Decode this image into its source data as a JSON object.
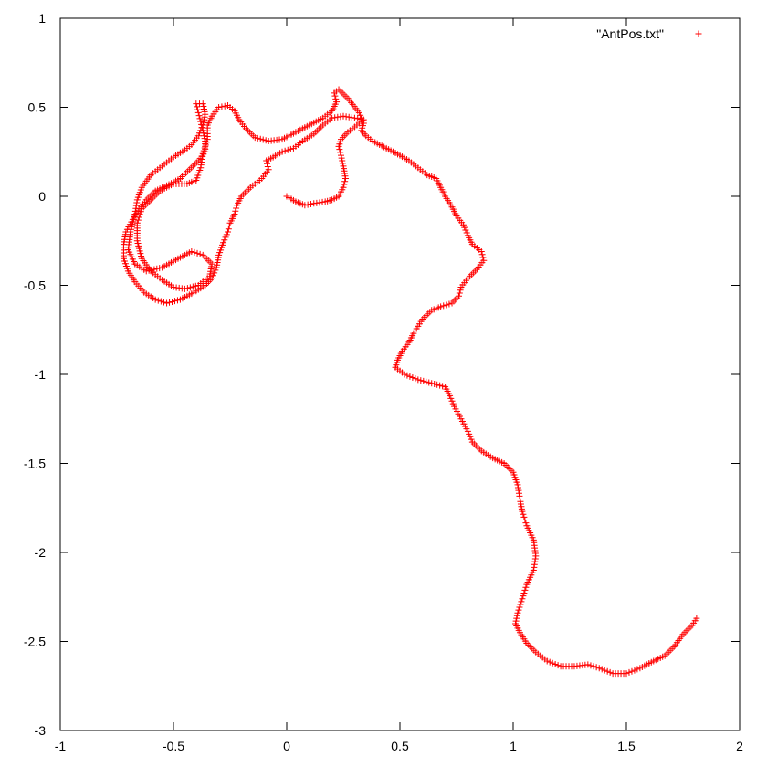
{
  "chart_data": {
    "type": "scatter",
    "xlim": [
      -1,
      2
    ],
    "ylim": [
      -3,
      1
    ],
    "x_ticks": [
      "-1",
      "-0.5",
      "0",
      "0.5",
      "1",
      "1.5",
      "2"
    ],
    "y_ticks": [
      "1",
      "0.5",
      "0",
      "-0.5",
      "-1",
      "-1.5",
      "-2",
      "-2.5",
      "-3"
    ],
    "grid": false,
    "legend": {
      "placement": "top-right",
      "entries": [
        "\"AntPos.txt\""
      ]
    },
    "series": [
      {
        "name": "\"AntPos.txt\"",
        "color": "#ff0000",
        "marker": "plus",
        "points": [
          [
            0.0,
            0.0
          ],
          [
            0.04,
            -0.03
          ],
          [
            0.08,
            -0.05
          ],
          [
            0.12,
            -0.04
          ],
          [
            0.17,
            -0.03
          ],
          [
            0.2,
            -0.02
          ],
          [
            0.23,
            0.0
          ],
          [
            0.25,
            0.05
          ],
          [
            0.26,
            0.1
          ],
          [
            0.25,
            0.17
          ],
          [
            0.24,
            0.23
          ],
          [
            0.23,
            0.28
          ],
          [
            0.24,
            0.32
          ],
          [
            0.27,
            0.36
          ],
          [
            0.31,
            0.4
          ],
          [
            0.34,
            0.43
          ],
          [
            0.3,
            0.44
          ],
          [
            0.25,
            0.45
          ],
          [
            0.2,
            0.44
          ],
          [
            0.16,
            0.4
          ],
          [
            0.12,
            0.35
          ],
          [
            0.07,
            0.31
          ],
          [
            0.03,
            0.27
          ],
          [
            -0.02,
            0.25
          ],
          [
            -0.06,
            0.22
          ],
          [
            -0.09,
            0.2
          ],
          [
            -0.08,
            0.15
          ],
          [
            -0.11,
            0.1
          ],
          [
            -0.16,
            0.05
          ],
          [
            -0.2,
            0.0
          ],
          [
            -0.22,
            -0.05
          ],
          [
            -0.23,
            -0.1
          ],
          [
            -0.25,
            -0.15
          ],
          [
            -0.26,
            -0.2
          ],
          [
            -0.28,
            -0.26
          ],
          [
            -0.3,
            -0.33
          ],
          [
            -0.31,
            -0.4
          ],
          [
            -0.33,
            -0.46
          ],
          [
            -0.36,
            -0.5
          ],
          [
            -0.41,
            -0.54
          ],
          [
            -0.47,
            -0.58
          ],
          [
            -0.53,
            -0.6
          ],
          [
            -0.58,
            -0.58
          ],
          [
            -0.63,
            -0.54
          ],
          [
            -0.67,
            -0.48
          ],
          [
            -0.7,
            -0.42
          ],
          [
            -0.72,
            -0.35
          ],
          [
            -0.72,
            -0.27
          ],
          [
            -0.71,
            -0.2
          ],
          [
            -0.68,
            -0.13
          ],
          [
            -0.65,
            -0.07
          ],
          [
            -0.62,
            -0.02
          ],
          [
            -0.58,
            0.03
          ],
          [
            -0.53,
            0.06
          ],
          [
            -0.47,
            0.1
          ],
          [
            -0.43,
            0.15
          ],
          [
            -0.39,
            0.2
          ],
          [
            -0.36,
            0.25
          ],
          [
            -0.36,
            0.31
          ],
          [
            -0.37,
            0.37
          ],
          [
            -0.38,
            0.42
          ],
          [
            -0.39,
            0.47
          ],
          [
            -0.4,
            0.52
          ],
          [
            -0.37,
            0.52
          ],
          [
            -0.36,
            0.46
          ],
          [
            -0.37,
            0.4
          ],
          [
            -0.39,
            0.34
          ],
          [
            -0.42,
            0.29
          ],
          [
            -0.45,
            0.26
          ],
          [
            -0.5,
            0.22
          ],
          [
            -0.55,
            0.17
          ],
          [
            -0.6,
            0.12
          ],
          [
            -0.64,
            0.05
          ],
          [
            -0.66,
            -0.02
          ],
          [
            -0.67,
            -0.1
          ],
          [
            -0.69,
            -0.2
          ],
          [
            -0.7,
            -0.3
          ],
          [
            -0.67,
            -0.38
          ],
          [
            -0.62,
            -0.42
          ],
          [
            -0.55,
            -0.4
          ],
          [
            -0.48,
            -0.35
          ],
          [
            -0.42,
            -0.31
          ],
          [
            -0.37,
            -0.33
          ],
          [
            -0.33,
            -0.38
          ],
          [
            -0.34,
            -0.45
          ],
          [
            -0.39,
            -0.5
          ],
          [
            -0.45,
            -0.52
          ],
          [
            -0.5,
            -0.51
          ],
          [
            -0.55,
            -0.47
          ],
          [
            -0.6,
            -0.42
          ],
          [
            -0.64,
            -0.35
          ],
          [
            -0.66,
            -0.25
          ],
          [
            -0.66,
            -0.15
          ],
          [
            -0.64,
            -0.07
          ],
          [
            -0.6,
            -0.02
          ],
          [
            -0.56,
            0.03
          ],
          [
            -0.5,
            0.07
          ],
          [
            -0.44,
            0.07
          ],
          [
            -0.4,
            0.09
          ],
          [
            -0.38,
            0.16
          ],
          [
            -0.37,
            0.24
          ],
          [
            -0.35,
            0.32
          ],
          [
            -0.35,
            0.4
          ],
          [
            -0.33,
            0.45
          ],
          [
            -0.3,
            0.5
          ],
          [
            -0.26,
            0.51
          ],
          [
            -0.23,
            0.48
          ],
          [
            -0.21,
            0.43
          ],
          [
            -0.18,
            0.38
          ],
          [
            -0.14,
            0.33
          ],
          [
            -0.08,
            0.31
          ],
          [
            -0.02,
            0.32
          ],
          [
            0.04,
            0.36
          ],
          [
            0.1,
            0.4
          ],
          [
            0.16,
            0.44
          ],
          [
            0.2,
            0.48
          ],
          [
            0.22,
            0.53
          ],
          [
            0.21,
            0.58
          ],
          [
            0.23,
            0.6
          ],
          [
            0.27,
            0.55
          ],
          [
            0.32,
            0.47
          ],
          [
            0.34,
            0.41
          ],
          [
            0.33,
            0.37
          ],
          [
            0.35,
            0.34
          ],
          [
            0.38,
            0.31
          ],
          [
            0.44,
            0.27
          ],
          [
            0.5,
            0.23
          ],
          [
            0.54,
            0.2
          ],
          [
            0.58,
            0.16
          ],
          [
            0.62,
            0.12
          ],
          [
            0.66,
            0.1
          ],
          [
            0.68,
            0.05
          ],
          [
            0.7,
            0.0
          ],
          [
            0.73,
            -0.06
          ],
          [
            0.75,
            -0.11
          ],
          [
            0.78,
            -0.16
          ],
          [
            0.8,
            -0.22
          ],
          [
            0.82,
            -0.27
          ],
          [
            0.86,
            -0.31
          ],
          [
            0.87,
            -0.36
          ],
          [
            0.84,
            -0.41
          ],
          [
            0.8,
            -0.46
          ],
          [
            0.77,
            -0.51
          ],
          [
            0.76,
            -0.56
          ],
          [
            0.73,
            -0.6
          ],
          [
            0.68,
            -0.62
          ],
          [
            0.64,
            -0.64
          ],
          [
            0.6,
            -0.69
          ],
          [
            0.58,
            -0.73
          ],
          [
            0.56,
            -0.77
          ],
          [
            0.54,
            -0.82
          ],
          [
            0.51,
            -0.87
          ],
          [
            0.49,
            -0.92
          ],
          [
            0.48,
            -0.96
          ],
          [
            0.52,
            -1.0
          ],
          [
            0.58,
            -1.03
          ],
          [
            0.64,
            -1.05
          ],
          [
            0.7,
            -1.07
          ],
          [
            0.72,
            -1.12
          ],
          [
            0.74,
            -1.18
          ],
          [
            0.77,
            -1.25
          ],
          [
            0.8,
            -1.32
          ],
          [
            0.82,
            -1.38
          ],
          [
            0.86,
            -1.43
          ],
          [
            0.91,
            -1.47
          ],
          [
            0.96,
            -1.5
          ],
          [
            1.0,
            -1.55
          ],
          [
            1.02,
            -1.62
          ],
          [
            1.03,
            -1.7
          ],
          [
            1.04,
            -1.77
          ],
          [
            1.06,
            -1.85
          ],
          [
            1.09,
            -1.93
          ],
          [
            1.1,
            -2.02
          ],
          [
            1.09,
            -2.1
          ],
          [
            1.06,
            -2.18
          ],
          [
            1.04,
            -2.26
          ],
          [
            1.02,
            -2.34
          ],
          [
            1.01,
            -2.4
          ],
          [
            1.03,
            -2.45
          ],
          [
            1.06,
            -2.51
          ],
          [
            1.1,
            -2.56
          ],
          [
            1.15,
            -2.61
          ],
          [
            1.21,
            -2.64
          ],
          [
            1.27,
            -2.64
          ],
          [
            1.33,
            -2.63
          ],
          [
            1.38,
            -2.65
          ],
          [
            1.44,
            -2.68
          ],
          [
            1.5,
            -2.68
          ],
          [
            1.56,
            -2.65
          ],
          [
            1.62,
            -2.61
          ],
          [
            1.67,
            -2.58
          ],
          [
            1.71,
            -2.53
          ],
          [
            1.75,
            -2.46
          ],
          [
            1.79,
            -2.41
          ],
          [
            1.81,
            -2.37
          ]
        ]
      }
    ]
  }
}
